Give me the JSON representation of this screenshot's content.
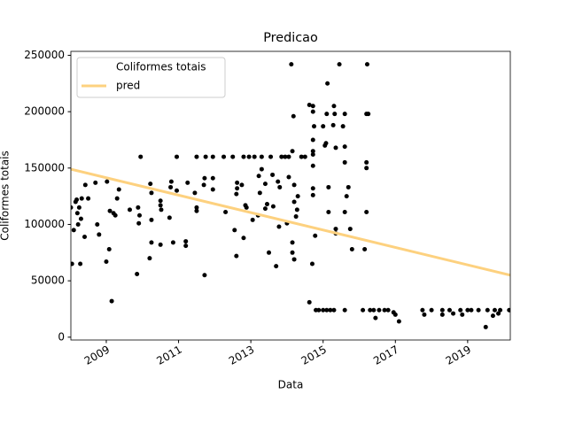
{
  "chart_data": {
    "type": "scatter",
    "title": "Predicao",
    "xlabel": "Data",
    "ylabel": "Coliformes totais",
    "xlim": [
      2008.02,
      2020.18
    ],
    "xticks": [
      2009,
      2011,
      2013,
      2015,
      2017,
      2019
    ],
    "ylim": [
      -2500,
      253500
    ],
    "yticks": [
      0,
      50000,
      100000,
      150000,
      200000,
      250000
    ],
    "legend": "upper left",
    "series": [
      {
        "name": "Coliformes totais",
        "type": "scatter",
        "color": "#000000",
        "x": [
          2008.02,
          2008.05,
          2008.1,
          2008.15,
          2008.18,
          2008.2,
          2008.22,
          2008.25,
          2008.28,
          2008.3,
          2008.32,
          2008.4,
          2008.42,
          2008.5,
          2008.7,
          2008.75,
          2008.8,
          2009.0,
          2009.02,
          2009.08,
          2009.1,
          2009.15,
          2009.2,
          2009.25,
          2009.3,
          2009.35,
          2009.65,
          2009.85,
          2009.88,
          2009.9,
          2009.92,
          2009.95,
          2010.2,
          2010.22,
          2010.25,
          2010.25,
          2010.25,
          2010.5,
          2010.5,
          2010.5,
          2010.52,
          2010.75,
          2010.78,
          2010.8,
          2010.85,
          2010.95,
          2010.95,
          2011.2,
          2011.2,
          2011.25,
          2011.45,
          2011.5,
          2011.5,
          2011.5,
          2011.7,
          2011.72,
          2011.75,
          2011.72,
          2011.95,
          2011.95,
          2011.95,
          2012.25,
          2012.3,
          2012.5,
          2012.55,
          2012.6,
          2012.62,
          2012.62,
          2012.6,
          2012.8,
          2012.75,
          2012.85,
          2012.8,
          2012.88,
          2012.95,
          2013.05,
          2013.1,
          2013.2,
          2013.3,
          2013.22,
          2013.25,
          2013.3,
          2013.4,
          2013.4,
          2013.45,
          2013.5,
          2013.55,
          2013.6,
          2013.62,
          2013.7,
          2013.75,
          2013.78,
          2013.8,
          2013.85,
          2013.95,
          2014.05,
          2014.0,
          2014.05,
          2014.12,
          2014.15,
          2014.18,
          2014.2,
          2014.2,
          2014.15,
          2014.15,
          2014.2,
          2014.25,
          2014.28,
          2014.3,
          2014.4,
          2014.5,
          2014.62,
          2014.62,
          2014.72,
          2014.72,
          2014.75,
          2014.72,
          2014.72,
          2014.72,
          2014.72,
          2014.72,
          2014.72,
          2014.78,
          2014.7,
          2014.8,
          2014.88,
          2015.0,
          2015.05,
          2015.08,
          2015.1,
          2015.12,
          2015.15,
          2015.15,
          2015.0,
          2015.1,
          2015.2,
          2015.3,
          2015.3,
          2015.32,
          2015.28,
          2015.35,
          2015.35,
          2015.35,
          2015.45,
          2015.6,
          2015.55,
          2015.6,
          2015.6,
          2015.65,
          2015.6,
          2015.7,
          2015.75,
          2015.8,
          2015.6,
          2016.15,
          2016.2,
          2016.22,
          2016.25,
          2016.2,
          2016.2,
          2016.2,
          2016.1,
          2016.3,
          2016.4,
          2016.45,
          2016.55,
          2016.7,
          2016.8,
          2016.95,
          2017.0,
          2017.1,
          2017.75,
          2017.8,
          2018.0,
          2018.3,
          2018.3,
          2018.5,
          2018.6,
          2018.8,
          2018.85,
          2019.0,
          2019.1,
          2019.3,
          2019.5,
          2019.55,
          2019.7,
          2019.75,
          2019.85,
          2019.9,
          2020.15
        ],
        "values": [
          115000,
          65000,
          95000,
          120000,
          122000,
          110000,
          100000,
          115000,
          65000,
          105000,
          123000,
          89000,
          135000,
          123000,
          137000,
          100000,
          91000,
          67000,
          138000,
          78000,
          112000,
          32000,
          110000,
          108000,
          123000,
          131000,
          113000,
          56000,
          115000,
          101000,
          108000,
          160000,
          70000,
          136000,
          128000,
          104000,
          84000,
          82000,
          117000,
          121000,
          113000,
          106000,
          133000,
          138000,
          84000,
          160000,
          130000,
          85000,
          81000,
          137000,
          128000,
          160000,
          115000,
          112000,
          135000,
          141000,
          160000,
          55000,
          141000,
          160000,
          131000,
          160000,
          111000,
          160000,
          95000,
          72000,
          137000,
          132000,
          127000,
          160000,
          135000,
          117000,
          88000,
          115000,
          160000,
          104000,
          160000,
          108000,
          160000,
          143000,
          128000,
          149000,
          114000,
          136000,
          118000,
          75000,
          160000,
          144000,
          116000,
          63000,
          138000,
          98000,
          133000,
          160000,
          160000,
          160000,
          101000,
          142000,
          242000,
          165000,
          196000,
          135000,
          120000,
          84000,
          75000,
          69000,
          107000,
          113000,
          125000,
          160000,
          160000,
          206000,
          31000,
          205000,
          200000,
          187000,
          175000,
          165000,
          162000,
          152000,
          132000,
          126000,
          90000,
          65000,
          24000,
          24000,
          187000,
          170000,
          172000,
          198000,
          225000,
          133000,
          111000,
          24000,
          24000,
          24000,
          24000,
          205000,
          198000,
          188000,
          168000,
          96000,
          92000,
          242000,
          198000,
          187000,
          169000,
          155000,
          125000,
          111000,
          133000,
          96000,
          78000,
          24000,
          78000,
          198000,
          242000,
          198000,
          155000,
          150000,
          111000,
          24000,
          24000,
          24000,
          17000,
          24000,
          24000,
          24000,
          22000,
          20000,
          14000,
          24000,
          20000,
          24000,
          24000,
          20000,
          24000,
          21000,
          24000,
          20000,
          24000,
          24000,
          24000,
          9000,
          24000,
          19000,
          24000,
          21000,
          24000,
          24000
        ]
      },
      {
        "name": "pred",
        "type": "line",
        "color": "#fdd17f",
        "x": [
          2008.02,
          2020.18
        ],
        "values": [
          149000,
          55000
        ]
      }
    ]
  }
}
